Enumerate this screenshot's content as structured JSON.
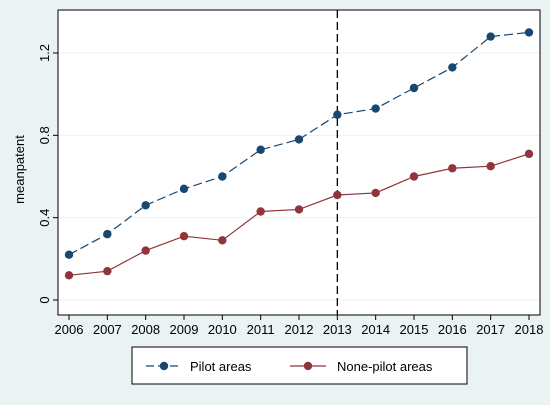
{
  "chart_data": {
    "type": "line",
    "title": "",
    "xlabel": "",
    "ylabel": "meanpatent",
    "x": [
      2006,
      2007,
      2008,
      2009,
      2010,
      2011,
      2012,
      2013,
      2014,
      2015,
      2016,
      2017,
      2018
    ],
    "x_tick_labels": [
      "2006",
      "2007",
      "2008",
      "2009",
      "2010",
      "2011",
      "2012",
      "2013",
      "2014",
      "2015",
      "2016",
      "2017",
      "2018"
    ],
    "y_ticks": [
      0,
      0.4,
      0.8,
      1.2
    ],
    "y_tick_labels": [
      "0",
      "0.4",
      "0.8",
      "1.2"
    ],
    "ylim": [
      0,
      1.35
    ],
    "grid": true,
    "legend_position": "bottom",
    "reference_line": {
      "x": 2013,
      "style": "dashed"
    },
    "series": [
      {
        "name": "Pilot areas",
        "color": "#1a476f",
        "line_style": "dashed",
        "values": [
          0.22,
          0.32,
          0.46,
          0.54,
          0.6,
          0.73,
          0.78,
          0.9,
          0.93,
          1.03,
          1.13,
          1.28,
          1.3
        ]
      },
      {
        "name": "None-pilot areas",
        "color": "#90353b",
        "line_style": "solid",
        "values": [
          0.12,
          0.14,
          0.24,
          0.31,
          0.29,
          0.43,
          0.44,
          0.51,
          0.52,
          0.6,
          0.64,
          0.65,
          0.71
        ]
      }
    ]
  }
}
